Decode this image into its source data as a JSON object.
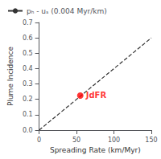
{
  "chart_data": {
    "type": "scatter",
    "xlabel": "Spreading Rate (km/Myr)",
    "ylabel": "Plume Incidence",
    "xlim": [
      0,
      150
    ],
    "ylim": [
      0,
      0.7
    ],
    "xticks": [
      0,
      50,
      100,
      150
    ],
    "yticks": [
      {
        "value": 0,
        "label": "0.0"
      },
      0.1,
      0.2,
      0.3,
      0.4,
      0.5,
      0.6,
      0.7
    ],
    "grid": false,
    "legend": "upper left",
    "series": [
      {
        "name": "pₕ - uₛ (0.004 Myr/km)",
        "type": "line",
        "line_style": "dashed",
        "color": "#333333",
        "x": [
          0,
          150
        ],
        "values": [
          0,
          0.6
        ]
      },
      {
        "type": "scatter",
        "color": "#ff0000",
        "x": [
          55
        ],
        "values": [
          0.225
        ]
      }
    ],
    "annotations": [
      {
        "text": "JdFR",
        "x": 55,
        "y": 0.225,
        "color": "#ff0000"
      }
    ]
  }
}
